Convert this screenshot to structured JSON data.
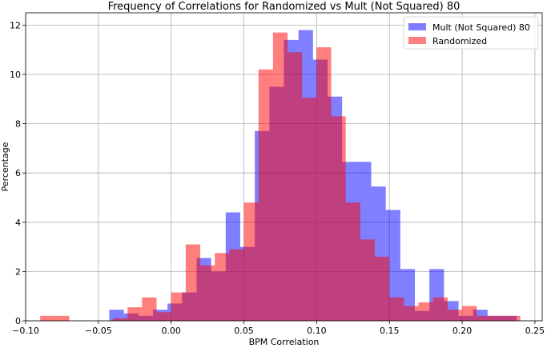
{
  "chart_data": {
    "type": "bar",
    "title": "Frequency of Correlations for Randomized vs Mult (Not Squared) 80",
    "xlabel": "BPM Correlation",
    "ylabel": "Percentage",
    "xlim": [
      -0.1,
      0.255
    ],
    "ylim": [
      0,
      12.5
    ],
    "xticks": [
      -0.1,
      -0.05,
      0.0,
      0.05,
      0.1,
      0.15,
      0.2,
      0.25
    ],
    "xtick_labels": [
      "−0.10",
      "−0.05",
      "0.00",
      "0.05",
      "0.10",
      "0.15",
      "0.20",
      "0.25"
    ],
    "yticks": [
      0,
      2,
      4,
      6,
      8,
      10,
      12
    ],
    "ytick_labels": [
      "0",
      "2",
      "4",
      "6",
      "8",
      "10",
      "12"
    ],
    "grid": true,
    "legend_position": "top-right",
    "series": [
      {
        "name": "Mult (Not Squared) 80",
        "color": "#0000ff",
        "opacity": 0.5,
        "bin_width": 0.01,
        "bins": [
          {
            "x": -0.0375,
            "y": 0.45
          },
          {
            "x": -0.0275,
            "y": 0.3
          },
          {
            "x": -0.0175,
            "y": 0.2
          },
          {
            "x": -0.0075,
            "y": 0.45
          },
          {
            "x": 0.0025,
            "y": 0.7
          },
          {
            "x": 0.0125,
            "y": 1.15
          },
          {
            "x": 0.0225,
            "y": 2.55
          },
          {
            "x": 0.0325,
            "y": 2.0
          },
          {
            "x": 0.0425,
            "y": 4.4
          },
          {
            "x": 0.0525,
            "y": 3.0
          },
          {
            "x": 0.0625,
            "y": 7.7
          },
          {
            "x": 0.0725,
            "y": 9.5
          },
          {
            "x": 0.0825,
            "y": 11.4
          },
          {
            "x": 0.0925,
            "y": 11.8
          },
          {
            "x": 0.1025,
            "y": 10.6
          },
          {
            "x": 0.1125,
            "y": 9.1
          },
          {
            "x": 0.1225,
            "y": 6.45
          },
          {
            "x": 0.1325,
            "y": 6.45
          },
          {
            "x": 0.1425,
            "y": 5.45
          },
          {
            "x": 0.1525,
            "y": 4.5
          },
          {
            "x": 0.1625,
            "y": 2.1
          },
          {
            "x": 0.1725,
            "y": 0.4
          },
          {
            "x": 0.1825,
            "y": 2.1
          },
          {
            "x": 0.1925,
            "y": 0.8
          },
          {
            "x": 0.2025,
            "y": 0.2
          },
          {
            "x": 0.2125,
            "y": 0.45
          },
          {
            "x": 0.2225,
            "y": 0.2
          },
          {
            "x": 0.2325,
            "y": 0.2
          }
        ]
      },
      {
        "name": "Randomized",
        "color": "#ff0000",
        "opacity": 0.5,
        "bin_width": 0.01,
        "bins": [
          {
            "x": -0.085,
            "y": 0.2
          },
          {
            "x": -0.075,
            "y": 0.2
          },
          {
            "x": -0.035,
            "y": 0.1
          },
          {
            "x": -0.025,
            "y": 0.55
          },
          {
            "x": -0.015,
            "y": 0.95
          },
          {
            "x": -0.005,
            "y": 0.35
          },
          {
            "x": 0.005,
            "y": 1.15
          },
          {
            "x": 0.015,
            "y": 3.1
          },
          {
            "x": 0.025,
            "y": 2.25
          },
          {
            "x": 0.035,
            "y": 2.75
          },
          {
            "x": 0.045,
            "y": 2.9
          },
          {
            "x": 0.055,
            "y": 4.8
          },
          {
            "x": 0.065,
            "y": 10.2
          },
          {
            "x": 0.075,
            "y": 11.7
          },
          {
            "x": 0.085,
            "y": 10.9
          },
          {
            "x": 0.095,
            "y": 9.05
          },
          {
            "x": 0.105,
            "y": 11.1
          },
          {
            "x": 0.115,
            "y": 8.3
          },
          {
            "x": 0.125,
            "y": 4.8
          },
          {
            "x": 0.135,
            "y": 3.3
          },
          {
            "x": 0.145,
            "y": 2.6
          },
          {
            "x": 0.155,
            "y": 0.95
          },
          {
            "x": 0.165,
            "y": 0.6
          },
          {
            "x": 0.175,
            "y": 0.75
          },
          {
            "x": 0.185,
            "y": 0.95
          },
          {
            "x": 0.195,
            "y": 0.45
          },
          {
            "x": 0.205,
            "y": 0.6
          },
          {
            "x": 0.215,
            "y": 0.2
          },
          {
            "x": 0.225,
            "y": 0.2
          },
          {
            "x": 0.235,
            "y": 0.2
          }
        ]
      }
    ]
  }
}
